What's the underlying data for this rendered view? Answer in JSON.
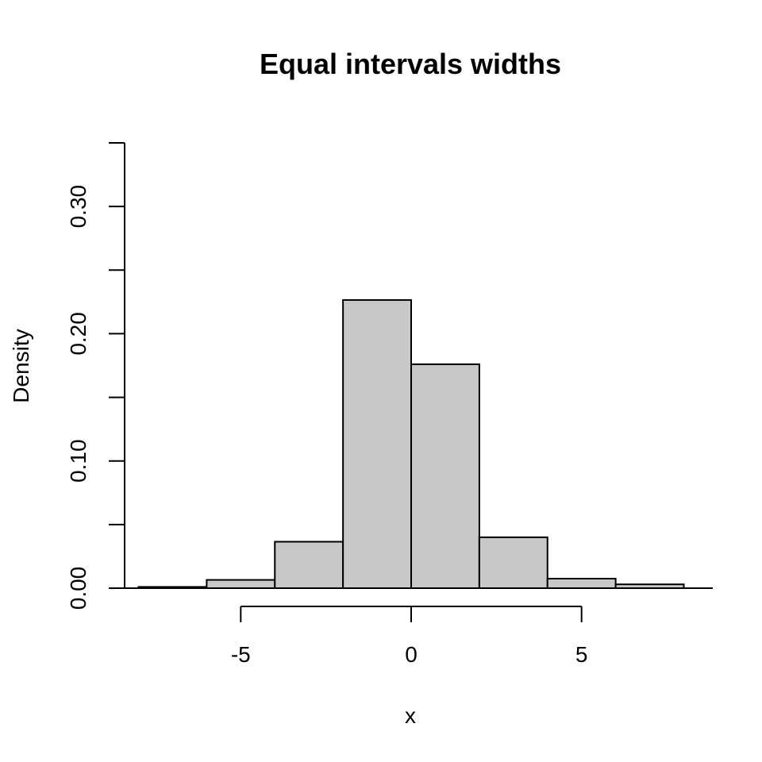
{
  "chart_data": {
    "type": "bar",
    "title": "Equal intervals widths",
    "xlabel": "x",
    "ylabel": "Density",
    "bins": [
      {
        "x0": -8,
        "x1": -6,
        "density": 0.001
      },
      {
        "x0": -6,
        "x1": -4,
        "density": 0.0065
      },
      {
        "x0": -4,
        "x1": -2,
        "density": 0.0365
      },
      {
        "x0": -2,
        "x1": 0,
        "density": 0.2265
      },
      {
        "x0": 0,
        "x1": 2,
        "density": 0.176
      },
      {
        "x0": 2,
        "x1": 4,
        "density": 0.04
      },
      {
        "x0": 4,
        "x1": 6,
        "density": 0.0075
      },
      {
        "x0": 6,
        "x1": 8,
        "density": 0.003
      }
    ],
    "xlim": [
      -8.85,
      8.85
    ],
    "ylim": [
      0,
      0.35
    ],
    "x_ticks": [
      -5,
      0,
      5
    ],
    "y_ticks": [
      0.0,
      0.05,
      0.1,
      0.15,
      0.2,
      0.25,
      0.3,
      0.35
    ],
    "y_tick_labels": [
      {
        "value": 0.0,
        "text": "0.00"
      },
      {
        "value": 0.1,
        "text": "0.10"
      },
      {
        "value": 0.2,
        "text": "0.20"
      },
      {
        "value": 0.3,
        "text": "0.30"
      }
    ],
    "grid": false,
    "bar_fill": "#c8c8c8",
    "bar_stroke": "#000000"
  }
}
